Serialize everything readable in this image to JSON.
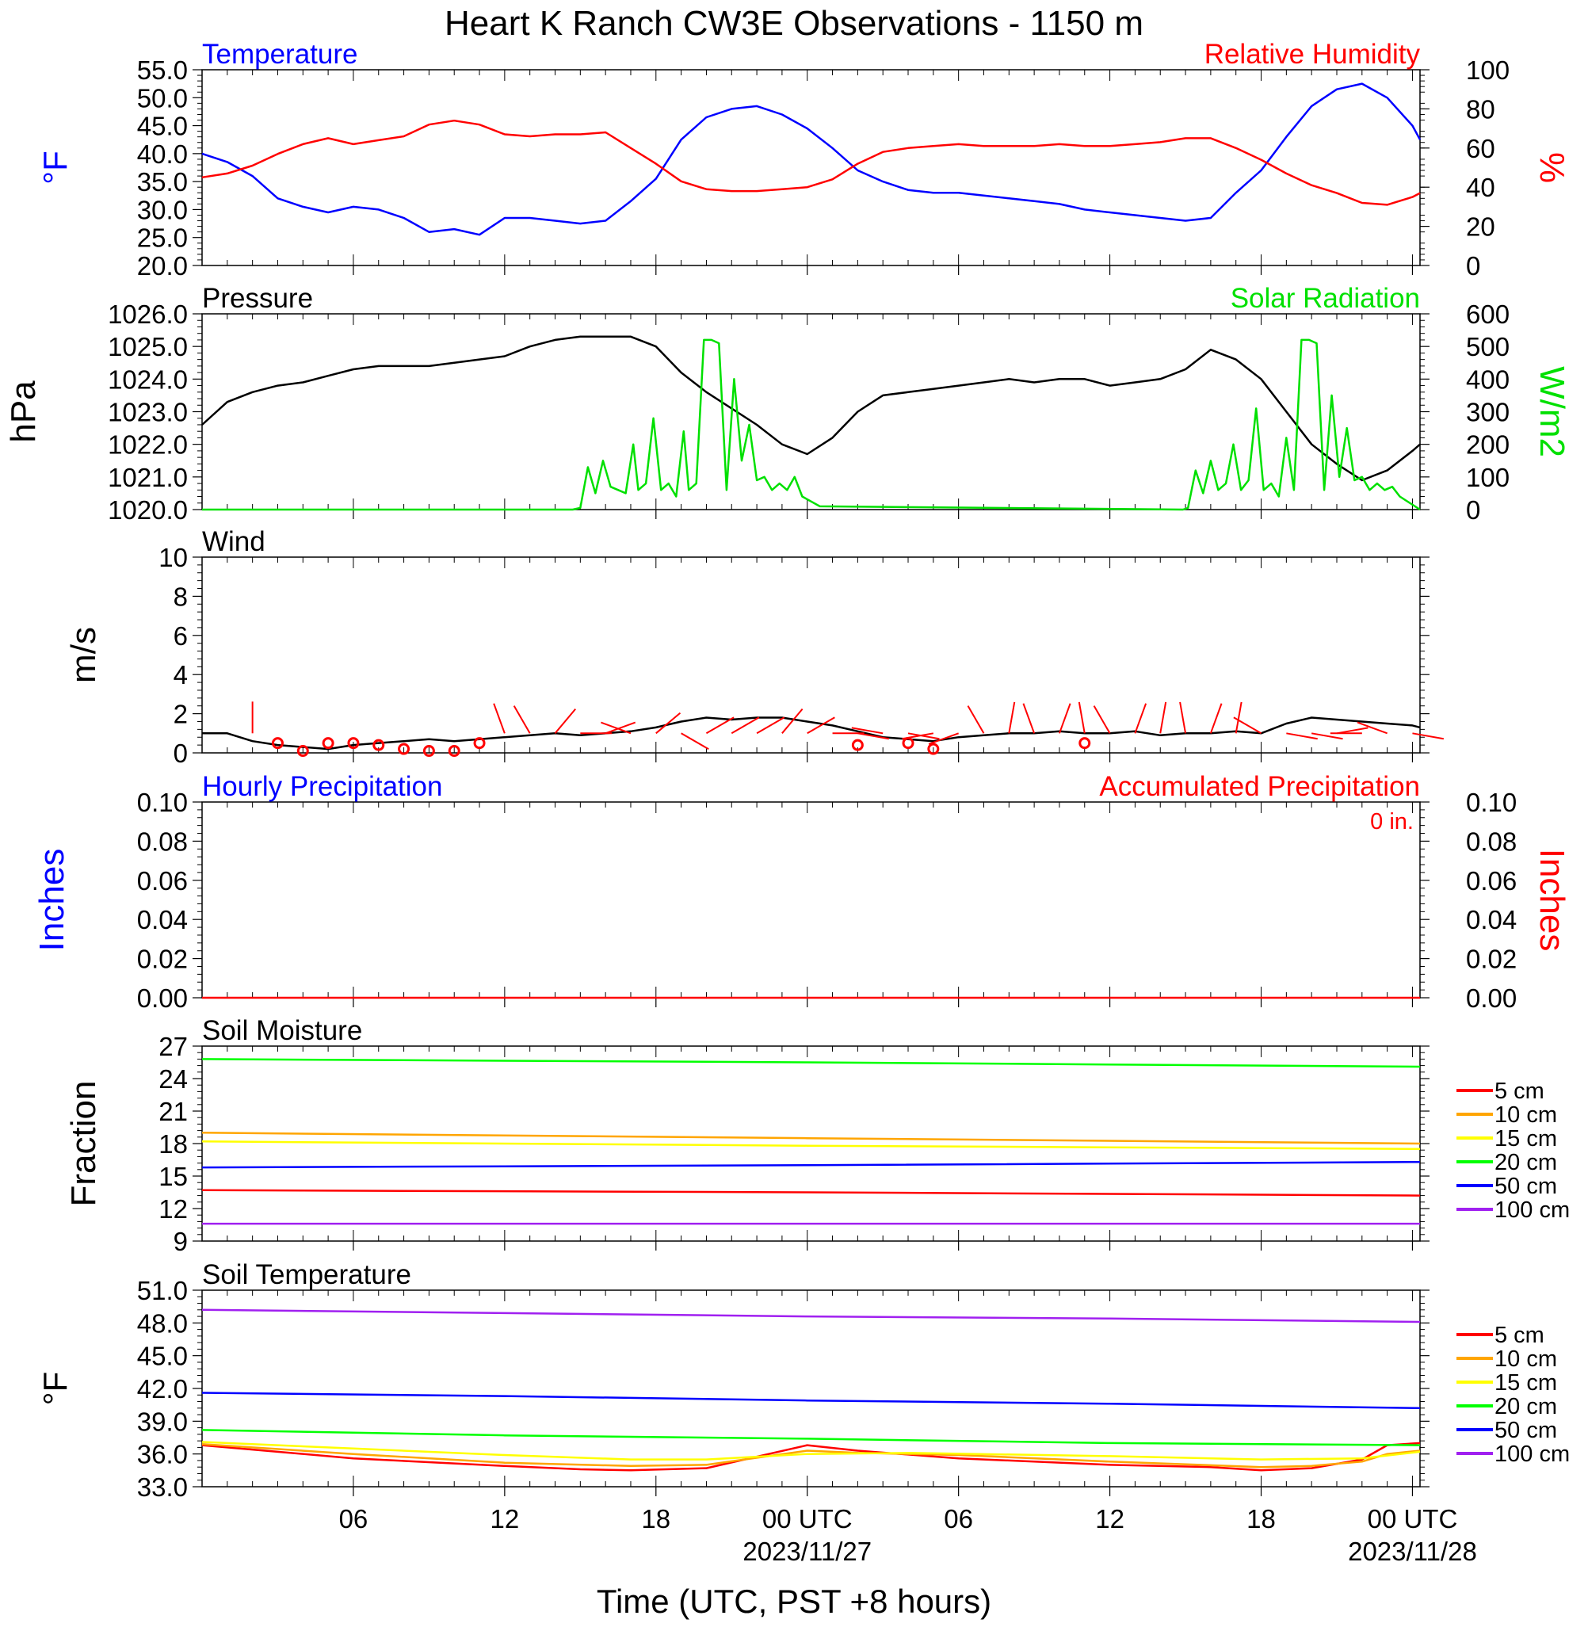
{
  "title": "Heart K Ranch CW3E Observations - 1150 m",
  "xlabel": "Time (UTC, PST +8 hours)",
  "colors": {
    "blue": "#0000ff",
    "red": "#ff0000",
    "green": "#00e000",
    "black": "#000000",
    "orange": "#ffa500",
    "yellow": "#ffff00",
    "soil_green": "#00ff00",
    "purple": "#a020f0"
  },
  "chart_data": [
    {
      "type": "line",
      "title": "",
      "left_title": "Temperature",
      "right_title": "Relative Humidity",
      "ylabel_left": "°F",
      "ylabel_right": "%",
      "ylim_left": [
        20,
        55
      ],
      "ylim_right": [
        0,
        100
      ],
      "yticks_left": [
        "55.0",
        "50.0",
        "45.0",
        "40.0",
        "35.0",
        "30.0",
        "25.0",
        "20.0"
      ],
      "yticks_right": [
        "100",
        "80",
        "60",
        "40",
        "20",
        "0"
      ],
      "x_unit": "hours since 2023/11/26 00 UTC",
      "xlim": [
        0,
        48.3
      ],
      "series": [
        {
          "name": "Temperature",
          "axis": "left",
          "color": "#0000ff",
          "x": [
            0,
            1,
            2,
            3,
            4,
            5,
            6,
            7,
            8,
            9,
            10,
            11,
            12,
            13,
            14,
            15,
            16,
            17,
            18,
            19,
            20,
            21,
            22,
            23,
            24,
            25,
            26,
            27,
            28,
            29,
            30,
            31,
            32,
            33,
            34,
            35,
            36,
            37,
            38,
            39,
            40,
            41,
            42,
            43,
            44,
            45,
            46,
            47,
            48,
            48.3
          ],
          "y": [
            40.0,
            38.5,
            36.0,
            32.0,
            30.5,
            29.5,
            30.5,
            30.0,
            28.5,
            26.0,
            26.5,
            25.5,
            28.5,
            28.5,
            28.0,
            27.5,
            28.0,
            31.5,
            35.5,
            42.5,
            46.5,
            48.0,
            48.5,
            47.0,
            44.5,
            41.0,
            37.0,
            35.0,
            33.5,
            33.0,
            33.0,
            32.5,
            32.0,
            31.5,
            31.0,
            30.0,
            29.5,
            29.0,
            28.5,
            28.0,
            28.5,
            33.0,
            37.0,
            43.0,
            48.5,
            51.5,
            52.5,
            50.0,
            45.0,
            42.5
          ]
        },
        {
          "name": "Relative Humidity",
          "axis": "right",
          "color": "#ff0000",
          "x": [
            0,
            1,
            2,
            3,
            4,
            5,
            6,
            7,
            8,
            9,
            10,
            11,
            12,
            13,
            14,
            15,
            16,
            17,
            18,
            19,
            20,
            21,
            22,
            23,
            24,
            25,
            26,
            27,
            28,
            29,
            30,
            31,
            32,
            33,
            34,
            35,
            36,
            37,
            38,
            39,
            40,
            41,
            42,
            43,
            44,
            45,
            46,
            47,
            48,
            48.3
          ],
          "y": [
            45,
            47,
            51,
            57,
            62,
            65,
            62,
            64,
            66,
            72,
            74,
            72,
            67,
            66,
            67,
            67,
            68,
            60,
            52,
            43,
            39,
            38,
            38,
            39,
            40,
            44,
            52,
            58,
            60,
            61,
            62,
            61,
            61,
            61,
            62,
            61,
            61,
            62,
            63,
            65,
            65,
            60,
            54,
            47,
            41,
            37,
            32,
            31,
            35,
            37
          ]
        }
      ]
    },
    {
      "type": "line",
      "title": "",
      "left_title": "Pressure",
      "right_title": "Solar Radiation",
      "ylabel_left": "hPa",
      "ylabel_right": "W/m2",
      "ylim_left": [
        1020,
        1026
      ],
      "ylim_right": [
        0,
        600
      ],
      "yticks_left": [
        "1026.0",
        "1025.0",
        "1024.0",
        "1023.0",
        "1022.0",
        "1021.0",
        "1020.0"
      ],
      "yticks_right": [
        "600",
        "500",
        "400",
        "300",
        "200",
        "100",
        "0"
      ],
      "x_unit": "hours since 2023/11/26 00 UTC",
      "series": [
        {
          "name": "Pressure",
          "axis": "left",
          "color": "#000000",
          "x": [
            0,
            1,
            2,
            3,
            4,
            5,
            6,
            7,
            8,
            9,
            10,
            11,
            12,
            13,
            14,
            15,
            16,
            17,
            18,
            19,
            20,
            21,
            22,
            23,
            24,
            25,
            26,
            27,
            28,
            29,
            30,
            31,
            32,
            33,
            34,
            35,
            36,
            37,
            38,
            39,
            40,
            41,
            42,
            43,
            44,
            45,
            46,
            47,
            48,
            48.3
          ],
          "y": [
            1022.6,
            1023.3,
            1023.6,
            1023.8,
            1023.9,
            1024.1,
            1024.3,
            1024.4,
            1024.4,
            1024.4,
            1024.5,
            1024.6,
            1024.7,
            1025.0,
            1025.2,
            1025.3,
            1025.3,
            1025.3,
            1025.0,
            1024.2,
            1023.6,
            1023.1,
            1022.6,
            1022.0,
            1021.7,
            1022.2,
            1023.0,
            1023.5,
            1023.6,
            1023.7,
            1023.8,
            1023.9,
            1024.0,
            1023.9,
            1024.0,
            1024.0,
            1023.8,
            1023.9,
            1024.0,
            1024.3,
            1024.9,
            1024.6,
            1024.0,
            1023.0,
            1022.0,
            1021.4,
            1020.9,
            1021.2,
            1021.8,
            1022.0
          ]
        },
        {
          "name": "Solar Radiation",
          "axis": "right",
          "color": "#00e000",
          "x": [
            0,
            14.7,
            15.0,
            15.3,
            15.6,
            15.9,
            16.2,
            16.5,
            16.8,
            17.1,
            17.3,
            17.6,
            17.9,
            18.2,
            18.5,
            18.8,
            19.1,
            19.3,
            19.6,
            19.9,
            20.2,
            20.5,
            20.8,
            21.1,
            21.4,
            21.7,
            22.0,
            22.3,
            22.6,
            22.9,
            23.2,
            23.5,
            23.8,
            24.5,
            38.9,
            39.1,
            39.4,
            39.7,
            40.0,
            40.3,
            40.6,
            40.9,
            41.2,
            41.5,
            41.8,
            42.1,
            42.4,
            42.7,
            43.0,
            43.3,
            43.6,
            43.9,
            44.2,
            44.5,
            44.8,
            45.1,
            45.4,
            45.7,
            46.0,
            46.3,
            46.6,
            46.9,
            47.2,
            47.5,
            48.3
          ],
          "y": [
            0,
            0,
            5,
            130,
            50,
            150,
            70,
            60,
            50,
            200,
            60,
            80,
            280,
            60,
            80,
            40,
            240,
            60,
            80,
            520,
            520,
            510,
            60,
            400,
            150,
            260,
            90,
            100,
            60,
            80,
            60,
            100,
            40,
            10,
            0,
            5,
            120,
            50,
            150,
            60,
            80,
            200,
            60,
            90,
            310,
            60,
            80,
            40,
            220,
            60,
            520,
            520,
            510,
            60,
            350,
            100,
            250,
            90,
            100,
            60,
            80,
            60,
            70,
            40,
            0
          ]
        }
      ]
    },
    {
      "type": "line",
      "title": "",
      "left_title": "Wind",
      "ylabel_left": "m/s",
      "ylim_left": [
        0,
        10
      ],
      "yticks_left": [
        "10",
        "8",
        "6",
        "4",
        "2",
        "0"
      ],
      "x_unit": "hours since 2023/11/26 00 UTC",
      "series": [
        {
          "name": "",
          "axis": "left",
          "color": "#000000",
          "x": [
            0,
            1,
            2,
            3,
            4,
            5,
            6,
            7,
            8,
            9,
            10,
            11,
            12,
            13,
            14,
            15,
            16,
            17,
            18,
            19,
            20,
            21,
            22,
            23,
            24,
            25,
            26,
            27,
            28,
            29,
            30,
            31,
            32,
            33,
            34,
            35,
            36,
            37,
            38,
            39,
            40,
            41,
            42,
            43,
            44,
            45,
            46,
            47,
            48,
            48.3
          ],
          "y": [
            1.0,
            1.0,
            0.6,
            0.4,
            0.3,
            0.2,
            0.4,
            0.5,
            0.6,
            0.7,
            0.6,
            0.7,
            0.8,
            0.9,
            1.0,
            0.9,
            1.0,
            1.1,
            1.3,
            1.6,
            1.8,
            1.7,
            1.8,
            1.8,
            1.6,
            1.4,
            1.1,
            0.8,
            0.7,
            0.6,
            0.8,
            0.9,
            1.0,
            1.0,
            1.1,
            1.0,
            1.0,
            1.1,
            0.9,
            1.0,
            1.0,
            1.1,
            1.0,
            1.5,
            1.8,
            1.7,
            1.6,
            1.5,
            1.4,
            1.3
          ]
        }
      ],
      "calm_markers_x": [
        3,
        4,
        5,
        6,
        7,
        8,
        9,
        10,
        11,
        26,
        28,
        29,
        35
      ],
      "calm_markers_y": [
        0.5,
        0.1,
        0.5,
        0.5,
        0.4,
        0.2,
        0.1,
        0.1,
        0.5,
        0.4,
        0.5,
        0.2,
        0.5
      ],
      "wind_barbs_x": [
        2,
        12,
        13,
        14,
        15,
        16,
        17,
        18,
        19,
        20,
        21,
        22,
        23,
        24,
        25,
        26,
        27,
        28,
        29,
        30,
        31,
        32,
        33,
        34,
        35,
        36,
        37,
        38,
        39,
        40,
        41,
        42,
        43,
        44,
        45,
        46,
        47,
        48
      ],
      "wind_barbs_dir_deg": [
        0,
        340,
        330,
        40,
        90,
        70,
        290,
        50,
        120,
        60,
        60,
        60,
        40,
        60,
        90,
        100,
        280,
        100,
        260,
        250,
        330,
        10,
        340,
        20,
        350,
        330,
        20,
        10,
        350,
        20,
        10,
        300,
        100,
        100,
        80,
        270,
        290,
        100
      ]
    },
    {
      "type": "line",
      "title": "",
      "left_title": "Hourly Precipitation",
      "right_title": "Accumulated Precipitation",
      "annotation": "0 in.",
      "ylabel_left": "Inches",
      "ylabel_right": "Inches",
      "ylim_left": [
        0,
        0.1
      ],
      "ylim_right": [
        0,
        0.1
      ],
      "yticks_left": [
        "0.10",
        "0.08",
        "0.06",
        "0.04",
        "0.02",
        "0.00"
      ],
      "yticks_right": [
        "0.10",
        "0.08",
        "0.06",
        "0.04",
        "0.02",
        "0.00"
      ],
      "x_unit": "hours since 2023/11/26 00 UTC",
      "series": [
        {
          "name": "Accumulated Precipitation",
          "axis": "right",
          "color": "#ff0000",
          "x": [
            0,
            48.3
          ],
          "y": [
            0,
            0
          ]
        }
      ]
    },
    {
      "type": "line",
      "title": "",
      "left_title": "Soil Moisture",
      "ylabel_left": "Fraction",
      "ylim_left": [
        9,
        27
      ],
      "yticks_left": [
        "27",
        "24",
        "21",
        "18",
        "15",
        "12",
        "9"
      ],
      "x_unit": "hours since 2023/11/26 00 UTC",
      "legend_position": "right",
      "series": [
        {
          "name": "5 cm",
          "color": "#ff0000",
          "x": [
            0,
            24,
            48.3
          ],
          "y": [
            13.7,
            13.5,
            13.2
          ]
        },
        {
          "name": "10 cm",
          "color": "#ffa500",
          "x": [
            0,
            24,
            48.3
          ],
          "y": [
            19.0,
            18.5,
            18.0
          ]
        },
        {
          "name": "15 cm",
          "color": "#ffff00",
          "x": [
            0,
            24,
            48.3
          ],
          "y": [
            18.2,
            17.8,
            17.5
          ]
        },
        {
          "name": "20 cm",
          "color": "#00ff00",
          "x": [
            0,
            24,
            48.3
          ],
          "y": [
            25.8,
            25.5,
            25.1
          ]
        },
        {
          "name": "50 cm",
          "color": "#0000ff",
          "x": [
            0,
            24,
            48.3
          ],
          "y": [
            15.8,
            16.0,
            16.3
          ]
        },
        {
          "name": "100 cm",
          "color": "#a020f0",
          "x": [
            0,
            24,
            48.3
          ],
          "y": [
            10.6,
            10.6,
            10.6
          ]
        }
      ]
    },
    {
      "type": "line",
      "title": "",
      "left_title": "Soil Temperature",
      "ylabel_left": "°F",
      "ylim_left": [
        33,
        51
      ],
      "yticks_left": [
        "51.0",
        "48.0",
        "45.0",
        "42.0",
        "39.0",
        "36.0",
        "33.0"
      ],
      "x_unit": "hours since 2023/11/26 00 UTC",
      "legend_position": "right",
      "series": [
        {
          "name": "5 cm",
          "color": "#ff0000",
          "x": [
            0,
            6,
            12,
            15,
            17,
            20,
            24,
            26,
            30,
            36,
            40,
            42,
            44,
            46,
            47,
            48.3
          ],
          "y": [
            36.8,
            35.6,
            34.9,
            34.6,
            34.5,
            34.7,
            36.8,
            36.3,
            35.6,
            35.0,
            34.8,
            34.5,
            34.7,
            35.5,
            36.8,
            37.0
          ]
        },
        {
          "name": "10 cm",
          "color": "#ffa500",
          "x": [
            0,
            6,
            12,
            17,
            20,
            24,
            26,
            30,
            36,
            42,
            44,
            46,
            47,
            48.3
          ],
          "y": [
            36.9,
            36.0,
            35.2,
            34.9,
            35.0,
            36.3,
            36.1,
            35.9,
            35.3,
            34.8,
            34.9,
            35.3,
            36.0,
            36.3
          ]
        },
        {
          "name": "15 cm",
          "color": "#ffff00",
          "x": [
            0,
            6,
            12,
            17,
            20,
            24,
            28,
            36,
            42,
            46,
            48.3
          ],
          "y": [
            37.1,
            36.5,
            35.9,
            35.5,
            35.5,
            36.0,
            36.1,
            35.8,
            35.5,
            35.6,
            36.2
          ]
        },
        {
          "name": "20 cm",
          "color": "#00ff00",
          "x": [
            0,
            12,
            24,
            36,
            48.3
          ],
          "y": [
            38.2,
            37.7,
            37.4,
            37.0,
            36.8
          ]
        },
        {
          "name": "50 cm",
          "color": "#0000ff",
          "x": [
            0,
            12,
            24,
            36,
            48.3
          ],
          "y": [
            41.6,
            41.3,
            40.9,
            40.6,
            40.2
          ]
        },
        {
          "name": "100 cm",
          "color": "#a020f0",
          "x": [
            0,
            12,
            24,
            36,
            48.3
          ],
          "y": [
            49.2,
            48.9,
            48.6,
            48.4,
            48.1
          ]
        }
      ]
    }
  ],
  "xticks": [
    {
      "hour": 6,
      "label": "06",
      "sub": ""
    },
    {
      "hour": 12,
      "label": "12",
      "sub": ""
    },
    {
      "hour": 18,
      "label": "18",
      "sub": ""
    },
    {
      "hour": 24,
      "label": "00 UTC",
      "sub": "2023/11/27"
    },
    {
      "hour": 30,
      "label": "06",
      "sub": ""
    },
    {
      "hour": 36,
      "label": "12",
      "sub": ""
    },
    {
      "hour": 42,
      "label": "18",
      "sub": ""
    },
    {
      "hour": 48,
      "label": "00 UTC",
      "sub": "2023/11/28"
    }
  ]
}
